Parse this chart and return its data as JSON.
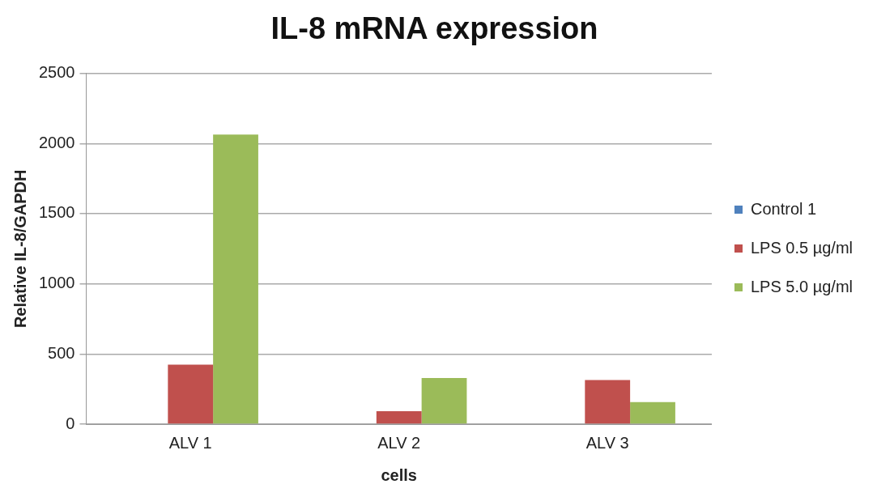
{
  "chart_data": {
    "type": "bar",
    "title": "IL-8 mRNA expression",
    "xlabel": "cells",
    "ylabel": "Relative IL-8/GAPDH",
    "categories": [
      "ALV 1",
      "ALV 2",
      "ALV 3"
    ],
    "series": [
      {
        "name": "Control 1",
        "color": "#4f81bd",
        "values": [
          5,
          5,
          5
        ]
      },
      {
        "name": "LPS 0.5 µg/ml",
        "color": "#c0504d",
        "values": [
          424,
          92,
          314
        ]
      },
      {
        "name": "LPS 5.0 µg/ml",
        "color": "#9bbb59",
        "values": [
          2064,
          329,
          157
        ]
      }
    ],
    "ylim": [
      0,
      2500
    ],
    "yticks": [
      0,
      500,
      1000,
      1500,
      2000,
      2500
    ],
    "grid": "y",
    "legend": "right"
  }
}
